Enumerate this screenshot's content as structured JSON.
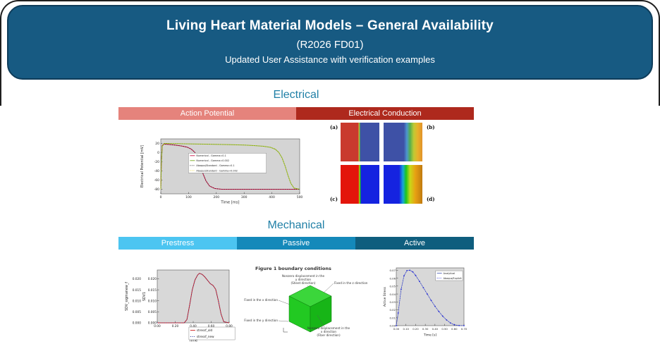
{
  "header": {
    "title": "Living Heart Material Models – General Availability",
    "subtitle": "(R2026 FD01)",
    "note": "Updated User Assistance with verification examples"
  },
  "colors": {
    "banner": "#175a82",
    "section_heading": "#1f7fa6",
    "action_potential_bar": "#e5837c",
    "electrical_conduction_bar": "#ae291d",
    "prestress_bar": "#4cc5f1",
    "passive_bar": "#1489ba",
    "active_bar": "#0f5e7e"
  },
  "sections": {
    "electrical": {
      "heading": "Electrical",
      "bars": [
        {
          "label": "Action Potential"
        },
        {
          "label": "Electrical Conduction"
        }
      ]
    },
    "mechanical": {
      "heading": "Mechanical",
      "bars": [
        {
          "label": "Prestress"
        },
        {
          "label": "Passive"
        },
        {
          "label": "Active"
        }
      ]
    }
  },
  "conduction_panels": {
    "labels": [
      "(a)",
      "(b)",
      "(c)",
      "(d)"
    ],
    "gradients": {
      "a": [
        [
          0,
          "#c93a2e"
        ],
        [
          0.455,
          "#c93a2e"
        ],
        [
          0.475,
          "#d9cf35"
        ],
        [
          0.495,
          "#4fa84f"
        ],
        [
          0.515,
          "#3e51a6"
        ],
        [
          1,
          "#3e51a6"
        ]
      ],
      "b": [
        [
          0,
          "#3e51a6"
        ],
        [
          0.52,
          "#3e51a6"
        ],
        [
          0.6,
          "#4d96cf"
        ],
        [
          0.68,
          "#54ae4e"
        ],
        [
          0.78,
          "#c1ca33"
        ],
        [
          0.88,
          "#e8b02a"
        ],
        [
          1,
          "#e2922a"
        ]
      ],
      "c": [
        [
          0,
          "#e3150b"
        ],
        [
          0.46,
          "#e3150b"
        ],
        [
          0.485,
          "#b5d81c"
        ],
        [
          0.505,
          "#18c518"
        ],
        [
          0.53,
          "#1523e0"
        ],
        [
          1,
          "#1523e0"
        ]
      ],
      "d": [
        [
          0,
          "#1523e0"
        ],
        [
          0.4,
          "#1523e0"
        ],
        [
          0.5,
          "#16a8d8"
        ],
        [
          0.58,
          "#1dc51d"
        ],
        [
          0.68,
          "#c8d818"
        ],
        [
          0.82,
          "#e8a012"
        ],
        [
          1,
          "#c07a10"
        ]
      ]
    }
  },
  "cube_figure": {
    "title": "Figure 1 boundary conditions",
    "labels": {
      "top": [
        "Nonzero displacement in the",
        "y direction",
        "(Sheet direction)"
      ],
      "right": "Fixed in the z direction",
      "left": "Fixed in the x direction",
      "bottom_left": "Fixed in the y direction",
      "bottom_right": [
        "Nonzero displacement in the",
        "x direction",
        "(Fiber direction)"
      ]
    }
  },
  "chart_data": [
    {
      "id": "action_potential",
      "type": "line",
      "title": "",
      "xlabel": "Time [ms]",
      "ylabel": "Electrical Potential [mV]",
      "xlim": [
        0,
        500
      ],
      "ylim": [
        -90,
        30
      ],
      "xticks": [
        0,
        100,
        200,
        300,
        400,
        500
      ],
      "xtick_labels": [
        "0",
        "100",
        "200",
        "300",
        "400",
        "500"
      ],
      "yticks": [
        20,
        0,
        -20,
        -40,
        -60,
        -80
      ],
      "ytick_labels": [
        "20",
        "0",
        "-20",
        "-40",
        "-60",
        "-80"
      ],
      "yaxes": [
        {
          "label": "Electrical Potential [mV]",
          "x": 7,
          "tick_x": 30
        }
      ],
      "bg": "#d4d4d4",
      "tf": 4.5,
      "lf": 3.4,
      "grid": false,
      "legend_position": "center",
      "legend": {
        "x": 0.2,
        "y": 0.26,
        "w": 0.56,
        "h": 0.36
      },
      "series": [
        {
          "name": "Numerical - Gamma=0.1",
          "color": "#c81346",
          "style": "solid",
          "w": 1.0,
          "x": [
            0,
            2,
            5,
            10,
            25,
            50,
            75,
            95,
            110,
            122,
            132,
            142,
            152,
            163,
            176,
            195,
            220,
            300,
            500
          ],
          "y": [
            -80,
            -25,
            15,
            18.5,
            18,
            16.5,
            14.5,
            12,
            7.5,
            1,
            -10,
            -27,
            -46,
            -62,
            -73,
            -78.5,
            -80,
            -80,
            -80
          ]
        },
        {
          "name": "Numerical - Gamma=0.002",
          "color": "#79aa1f",
          "style": "solid",
          "w": 1.0,
          "x": [
            0,
            2,
            5,
            12,
            60,
            120,
            180,
            240,
            300,
            340,
            370,
            395,
            412,
            425,
            437,
            448,
            458,
            468,
            480,
            500
          ],
          "y": [
            -80,
            -25,
            13,
            20,
            19.6,
            19,
            18.3,
            17.5,
            16.4,
            15.2,
            13.8,
            11.5,
            7.5,
            0.5,
            -12,
            -30,
            -50,
            -67,
            -77.5,
            -80
          ]
        },
        {
          "name": "Abaqus/Standard - Gamma=0.1",
          "color": "#1a1a1a",
          "style": "dotted",
          "w": 0.8,
          "x": [
            0,
            2,
            5,
            10,
            25,
            50,
            75,
            95,
            110,
            122,
            132,
            142,
            152,
            163,
            176,
            195,
            220,
            300,
            500
          ],
          "y": [
            -80,
            -25,
            15,
            18.5,
            18,
            16.5,
            14.5,
            12,
            7.5,
            1,
            -10,
            -27,
            -46,
            -62,
            -73,
            -78.5,
            -80,
            -80,
            -80
          ]
        },
        {
          "name": "Abaqus/Standard - Gamma=0.002",
          "color": "#e8d426",
          "style": "dotted",
          "w": 0.8,
          "x": [
            0,
            2,
            5,
            12,
            60,
            120,
            180,
            240,
            300,
            340,
            370,
            395,
            412,
            425,
            437,
            448,
            458,
            468,
            480,
            500
          ],
          "y": [
            -80,
            -25,
            13,
            20,
            19.6,
            19,
            18.3,
            17.5,
            16.4,
            15.2,
            13.8,
            11.5,
            7.5,
            0.5,
            -12,
            -30,
            -50,
            -67,
            -77.5,
            -80
          ]
        }
      ],
      "layout": {
        "margins": {
          "l": 32,
          "r": 11,
          "t": 19,
          "b": 15
        }
      }
    },
    {
      "id": "prestress_sdv",
      "type": "line",
      "title": "",
      "xlabel": "Time",
      "ylabel": "SDV_sigmanew_f",
      "ylabel2": "SDV1",
      "xlim": [
        0,
        0.8
      ],
      "ylim": [
        0,
        0.024
      ],
      "xticks": [
        0,
        0.2,
        0.4,
        0.6,
        0.8
      ],
      "xtick_labels": [
        "0.00",
        "0.20",
        "0.40",
        "0.60",
        "0.80"
      ],
      "yticks": [
        0,
        0.005,
        0.01,
        0.015,
        0.02
      ],
      "ytick_labels": [
        "0.000",
        "0.005",
        "0.010",
        "0.015",
        "0.020"
      ],
      "yaxes": [
        {
          "label": "SDV_sigmanew_f",
          "x": 9,
          "tick_x": 28
        },
        {
          "label": "SDV1",
          "x": 34,
          "tick_x": 50
        }
      ],
      "bg": "#d8d8d8",
      "tf": 4.3,
      "lf": 4.2,
      "grid": false,
      "legend_position": "below-right",
      "legend": {
        "x": 0.44,
        "y": 1.08,
        "w": 0.64,
        "h": 0.24
      },
      "series": [
        {
          "name": "stressf_old",
          "color": "#cc2020",
          "style": "solid",
          "w": 1.0,
          "x": [
            0,
            0.3,
            0.33,
            0.36,
            0.39,
            0.42,
            0.45,
            0.47,
            0.5,
            0.53,
            0.56,
            0.59,
            0.62,
            0.65,
            0.68,
            0.71,
            0.74,
            0.8
          ],
          "y": [
            0,
            0,
            0.0015,
            0.008,
            0.015,
            0.0195,
            0.0218,
            0.0225,
            0.022,
            0.0208,
            0.0193,
            0.0178,
            0.017,
            0.0152,
            0.01,
            0.004,
            0.0005,
            0
          ]
        },
        {
          "name": "stressf_new",
          "color": "#26349c",
          "style": "dotted",
          "w": 0.8,
          "x": [
            0,
            0.3,
            0.33,
            0.36,
            0.39,
            0.42,
            0.45,
            0.47,
            0.5,
            0.53,
            0.56,
            0.59,
            0.62,
            0.65,
            0.68,
            0.71,
            0.74,
            0.8
          ],
          "y": [
            0,
            0,
            0.0015,
            0.008,
            0.015,
            0.0195,
            0.0218,
            0.0225,
            0.022,
            0.0208,
            0.0193,
            0.0178,
            0.017,
            0.0152,
            0.01,
            0.004,
            0.0005,
            0
          ]
        }
      ],
      "layout": {
        "margins": {
          "l": 51,
          "r": 19,
          "t": 11,
          "b": 28
        }
      }
    },
    {
      "id": "active_stress",
      "type": "line",
      "title": "",
      "xlabel": "Time [s]",
      "ylabel": "Active Stress",
      "xlim": [
        0,
        0.7
      ],
      "ylim": [
        0,
        0.073
      ],
      "xticks": [
        0,
        0.1,
        0.2,
        0.3,
        0.4,
        0.5,
        0.6,
        0.7
      ],
      "xtick_labels": [
        "0.00",
        "0.10",
        "0.20",
        "0.30",
        "0.40",
        "0.50",
        "0.60",
        "0.70"
      ],
      "yticks": [
        0,
        0.01,
        0.02,
        0.03,
        0.04,
        0.05,
        0.06,
        0.07
      ],
      "ytick_labels": [
        "0.00",
        "0.01",
        "0.02",
        "0.03",
        "0.04",
        "0.05",
        "0.06",
        "0.07"
      ],
      "yaxes": [
        {
          "label": "Active Stress",
          "x": 5,
          "tick_x": 19
        }
      ],
      "bg": "#d8d8d8",
      "tf": 3.8,
      "lf": 3.4,
      "grid": false,
      "legend_position": "top-right",
      "legend": {
        "x": 0.58,
        "y": 0.05,
        "w": 0.4,
        "h": 0.17
      },
      "series": [
        {
          "name": "Analytical",
          "color": "#5566bb",
          "style": "solid",
          "w": 0.6,
          "x": [
            0,
            0.02,
            0.05,
            0.08,
            0.11,
            0.14,
            0.17,
            0.2,
            0.24,
            0.28,
            0.32,
            0.36,
            0.4,
            0.44,
            0.48,
            0.52,
            0.56,
            0.6,
            0.65,
            0.7
          ],
          "y": [
            0,
            0.016,
            0.046,
            0.063,
            0.0695,
            0.07,
            0.068,
            0.0635,
            0.056,
            0.048,
            0.04,
            0.032,
            0.0245,
            0.018,
            0.012,
            0.0072,
            0.0035,
            0.0012,
            0.0002,
            0
          ]
        },
        {
          "name": "Abaqus/Explicit",
          "color": "#2228d8",
          "style": "dotted",
          "w": 0.8,
          "markers": true,
          "x": [
            0,
            0.02,
            0.05,
            0.08,
            0.11,
            0.14,
            0.17,
            0.2,
            0.24,
            0.28,
            0.32,
            0.36,
            0.4,
            0.44,
            0.48,
            0.52,
            0.56,
            0.6,
            0.65,
            0.7
          ],
          "y": [
            0,
            0.016,
            0.046,
            0.063,
            0.0695,
            0.07,
            0.068,
            0.0635,
            0.056,
            0.048,
            0.04,
            0.032,
            0.0245,
            0.018,
            0.012,
            0.0072,
            0.0035,
            0.0012,
            0.0002,
            0
          ]
        }
      ],
      "layout": {
        "margins": {
          "l": 20,
          "r": 26,
          "t": 8,
          "b": 16
        }
      }
    }
  ]
}
